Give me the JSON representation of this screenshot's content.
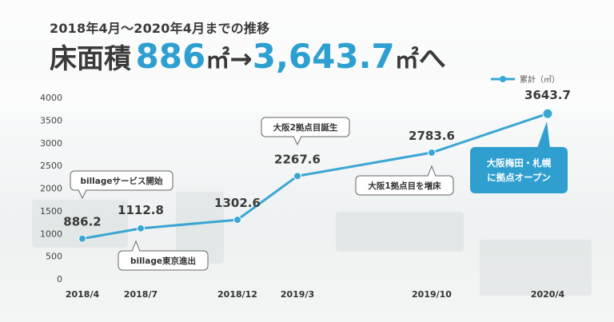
{
  "header": {
    "subtitle": "2018年4月～2020年4月までの推移",
    "headline_label": "床面積",
    "from_value": "886",
    "unit": "㎡",
    "arrow": "→",
    "to_value": "3,643.7",
    "suffix": "へ"
  },
  "colors": {
    "accent": "#2d9fd0",
    "line": "#3aa6d4",
    "highlight_box": "#2f9fd0"
  },
  "chart_data": {
    "type": "line",
    "title": "",
    "xlabel": "",
    "ylabel": "",
    "categories": [
      "2018/4",
      "2018/7",
      "2018/12",
      "2019/3",
      "2019/10",
      "2020/4"
    ],
    "series": [
      {
        "name": "累計（㎡）",
        "values": [
          886.2,
          1112.8,
          1302.6,
          2267.6,
          2783.6,
          3643.7
        ]
      }
    ],
    "data_labels": [
      "886.2",
      "1112.8",
      "1302.6",
      "2267.6",
      "2783.6",
      "3643.7"
    ],
    "ylim": [
      0,
      4000
    ],
    "yticks": [
      0,
      500,
      1000,
      1500,
      2000,
      2500,
      3000,
      3500,
      4000
    ],
    "grid": false,
    "legend": "top-right",
    "annotations": [
      {
        "text": "billageサービス開始",
        "point": 0,
        "style": "above"
      },
      {
        "text": "billage東京進出",
        "point": 1,
        "style": "below"
      },
      {
        "text": "大阪2拠点目誕生",
        "point": 3,
        "style": "above"
      },
      {
        "text": "大阪1拠点目を増床",
        "point": 4,
        "style": "below"
      },
      {
        "lines": [
          "大阪梅田・札幌",
          "に拠点オープン"
        ],
        "point": 5,
        "style": "highlight"
      }
    ]
  }
}
